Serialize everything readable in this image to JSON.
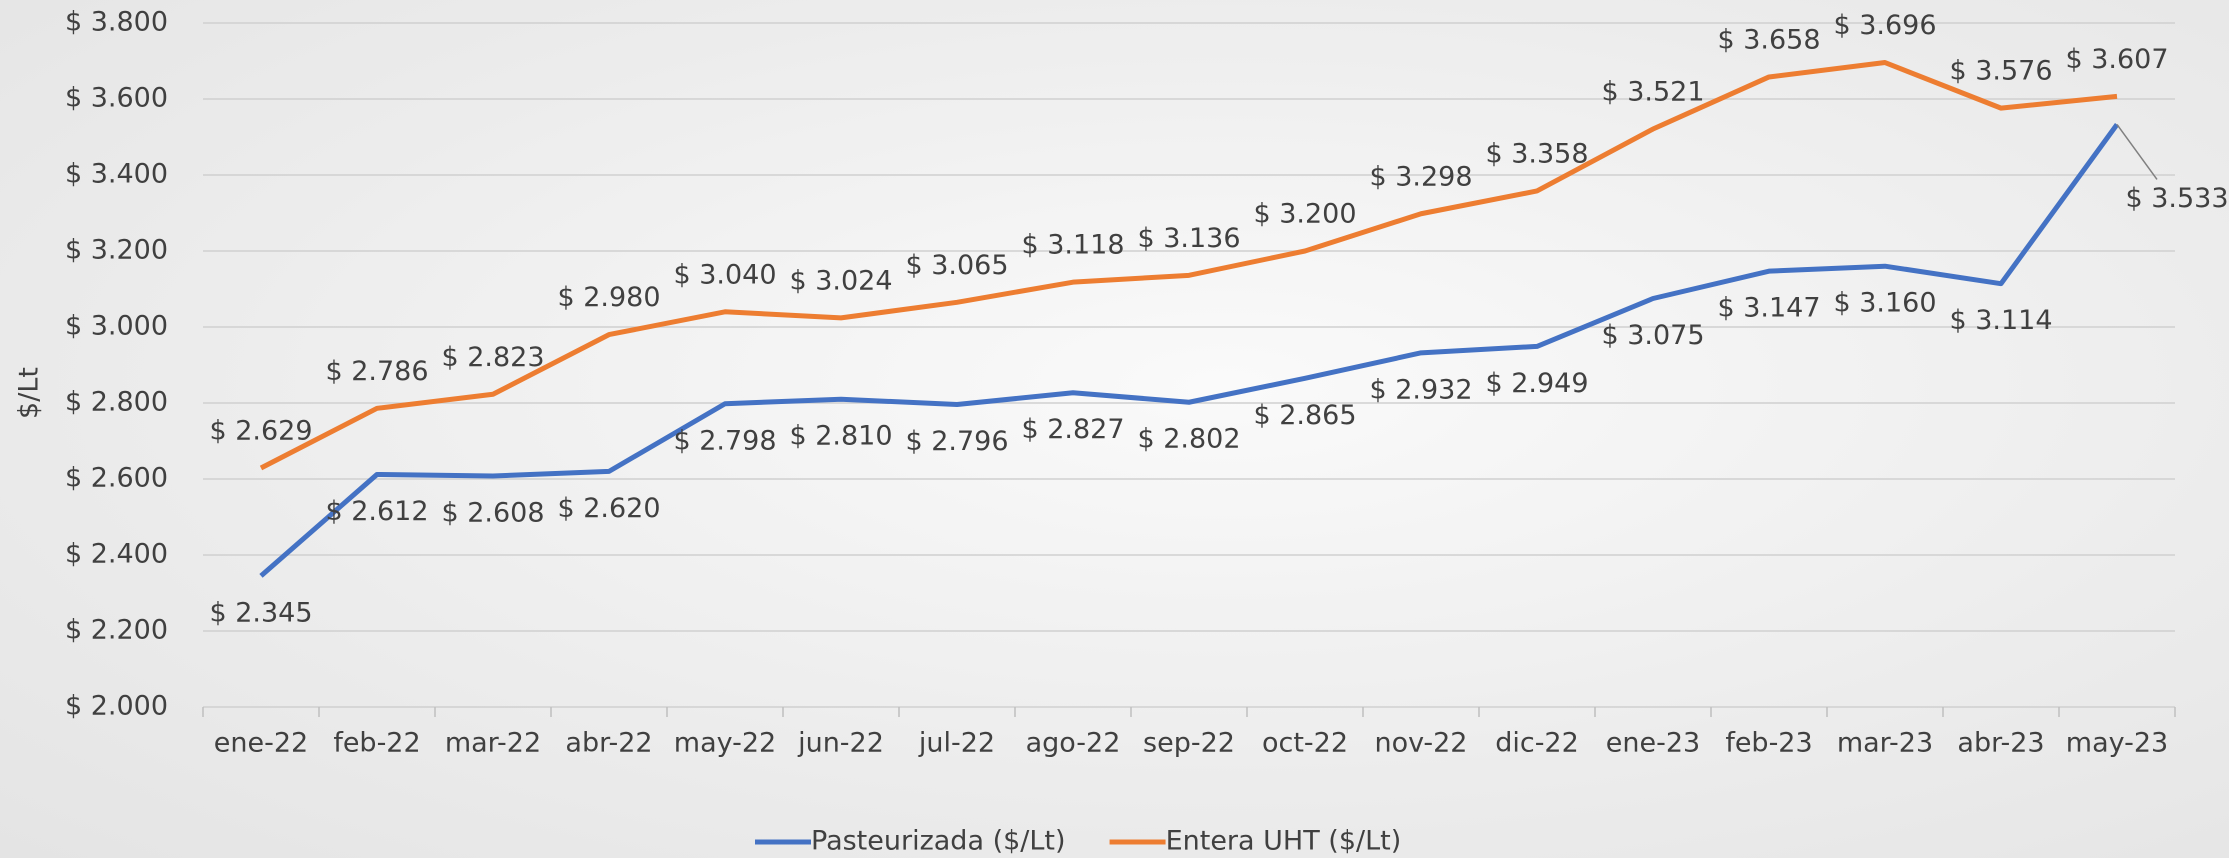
{
  "chart_data": {
    "type": "line",
    "y_label": "$/Lt",
    "categories": [
      "ene-22",
      "feb-22",
      "mar-22",
      "abr-22",
      "may-22",
      "jun-22",
      "jul-22",
      "ago-22",
      "sep-22",
      "oct-22",
      "nov-22",
      "dic-22",
      "ene-23",
      "feb-23",
      "mar-23",
      "abr-23",
      "may-23"
    ],
    "series": [
      {
        "name": "Pasteurizada ($/Lt)",
        "color": "#4472c4",
        "values": [
          2345,
          2612,
          2608,
          2620,
          2798,
          2810,
          2796,
          2827,
          2802,
          2865,
          2932,
          2949,
          3075,
          3147,
          3160,
          3114,
          3533
        ],
        "value_labels": [
          "$ 2.345",
          "$ 2.612",
          "$ 2.608",
          "$ 2.620",
          "$ 2.798",
          "$ 2.810",
          "$ 2.796",
          "$ 2.827",
          "$ 2.802",
          "$ 2.865",
          "$ 2.932",
          "$ 2.949",
          "$ 3.075",
          "$ 3.147",
          "$ 3.160",
          "$ 3.114",
          "$ 3.533"
        ]
      },
      {
        "name": "Entera UHT ($/Lt)",
        "color": "#ed7d31",
        "values": [
          2629,
          2786,
          2823,
          2980,
          3040,
          3024,
          3065,
          3118,
          3136,
          3200,
          3298,
          3358,
          3521,
          3658,
          3696,
          3576,
          3607
        ],
        "value_labels": [
          "$ 2.629",
          "$ 2.786",
          "$ 2.823",
          "$ 2.980",
          "$ 3.040",
          "$ 3.024",
          "$ 3.065",
          "$ 3.118",
          "$ 3.136",
          "$ 3.200",
          "$ 3.298",
          "$ 3.358",
          "$ 3.521",
          "$ 3.658",
          "$ 3.696",
          "$ 3.576",
          "$ 3.607"
        ]
      }
    ],
    "ylim": [
      2000,
      3800
    ],
    "yticks": [
      {
        "value": 2000,
        "label": "$ 2.000"
      },
      {
        "value": 2200,
        "label": "$ 2.200"
      },
      {
        "value": 2400,
        "label": "$ 2.400"
      },
      {
        "value": 2600,
        "label": "$ 2.600"
      },
      {
        "value": 2800,
        "label": "$ 2.800"
      },
      {
        "value": 3000,
        "label": "$ 3.000"
      },
      {
        "value": 3200,
        "label": "$ 3.200"
      },
      {
        "value": 3400,
        "label": "$ 3.400"
      },
      {
        "value": 3600,
        "label": "$ 3.600"
      },
      {
        "value": 3800,
        "label": "$ 3.800"
      }
    ],
    "grid": true,
    "legend": "bottom"
  }
}
